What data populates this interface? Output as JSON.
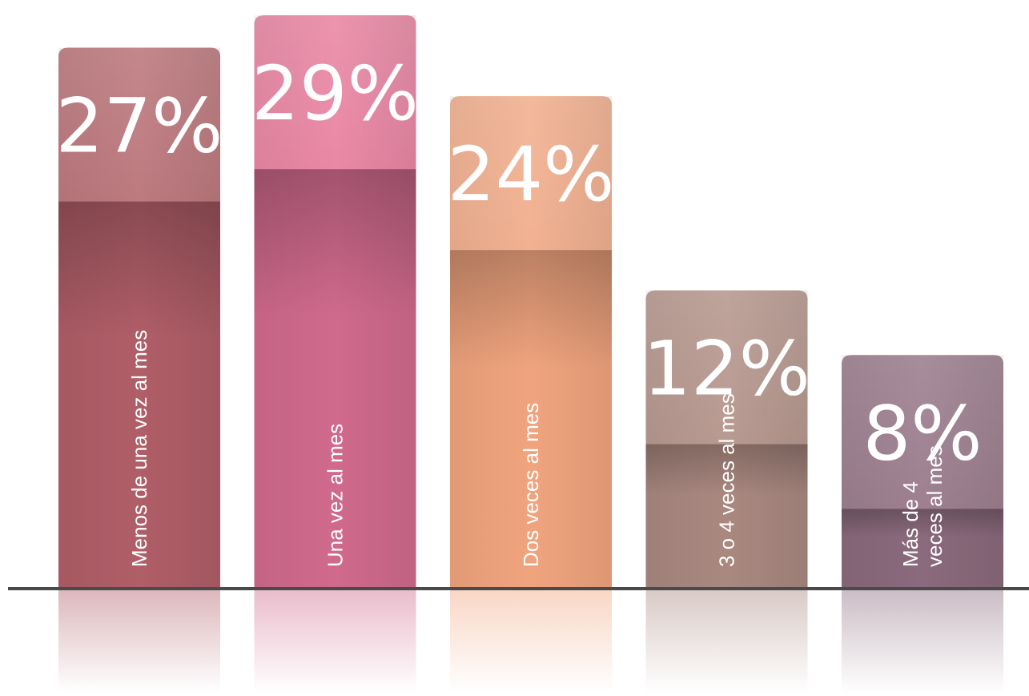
{
  "chart_data": {
    "type": "bar",
    "categories": [
      "Menos de una vez al mes",
      "Una vez al mes",
      "Dos veces al mes",
      "3 o 4 veces al mes",
      "Más de 4 veces al mes"
    ],
    "category_lines": [
      [
        "Menos de una vez al mes"
      ],
      [
        "Una vez al mes"
      ],
      [
        "Dos veces al mes"
      ],
      [
        "3 o 4 veces al mes"
      ],
      [
        "Más de 4",
        "veces al mes"
      ]
    ],
    "values": [
      27,
      29,
      24,
      12,
      8
    ],
    "value_labels": [
      "27%",
      "29%",
      "24%",
      "12%",
      "8%"
    ],
    "colors": [
      "#b05e68",
      "#d06a8c",
      "#f0a47e",
      "#a98880",
      "#8a6a7c"
    ],
    "cap_colors": [
      "#bd7a7f",
      "#ea88a6",
      "#f2b191",
      "#b89a91",
      "#9e8090"
    ],
    "title": "",
    "xlabel": "",
    "ylabel": "",
    "grid": false,
    "legend": "none"
  }
}
